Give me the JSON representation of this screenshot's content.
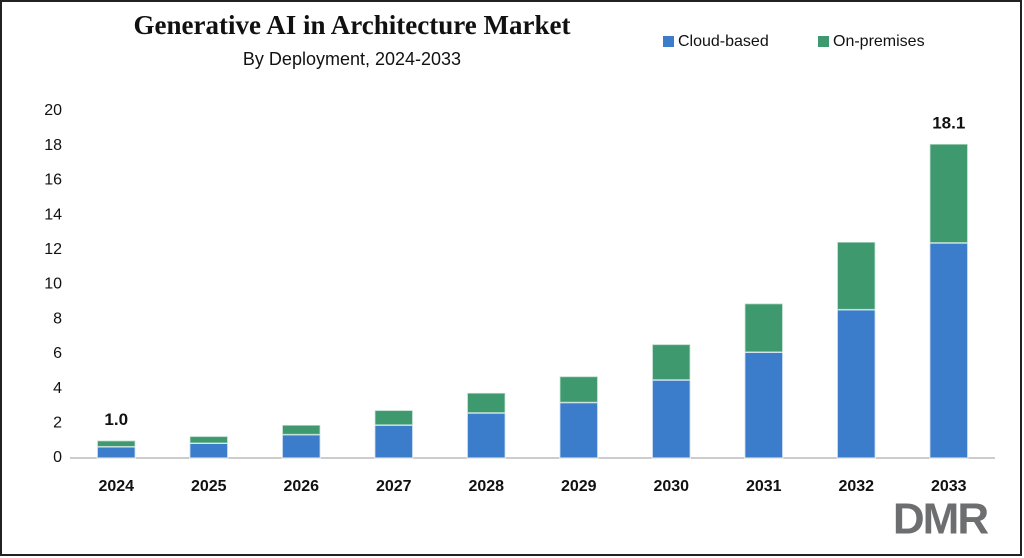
{
  "chart_data": {
    "type": "stacked_bar",
    "title": "Generative AI in Architecture Market",
    "subtitle": "By Deployment, 2024-2033",
    "categories": [
      "2024",
      "2025",
      "2026",
      "2027",
      "2028",
      "2029",
      "2030",
      "2031",
      "2032",
      "2033"
    ],
    "series": [
      {
        "name": "Cloud-based",
        "color": "#3b7dca",
        "values": [
          0.65,
          0.85,
          1.35,
          1.9,
          2.6,
          3.2,
          4.5,
          6.1,
          8.55,
          12.4
        ]
      },
      {
        "name": "On-premises",
        "color": "#3e9a6e",
        "values": [
          0.35,
          0.4,
          0.55,
          0.85,
          1.15,
          1.5,
          2.05,
          2.8,
          3.9,
          5.7
        ]
      }
    ],
    "annotations": [
      {
        "x": "2024",
        "value": 1.0,
        "label": "1.0"
      },
      {
        "x": "2033",
        "value": 18.1,
        "label": "18.1"
      }
    ],
    "ylim": [
      0,
      20
    ],
    "yticks": [
      0,
      2,
      4,
      6,
      8,
      10,
      12,
      14,
      16,
      18,
      20
    ],
    "grid": false,
    "legend": "top-right",
    "logo": "DMR"
  }
}
